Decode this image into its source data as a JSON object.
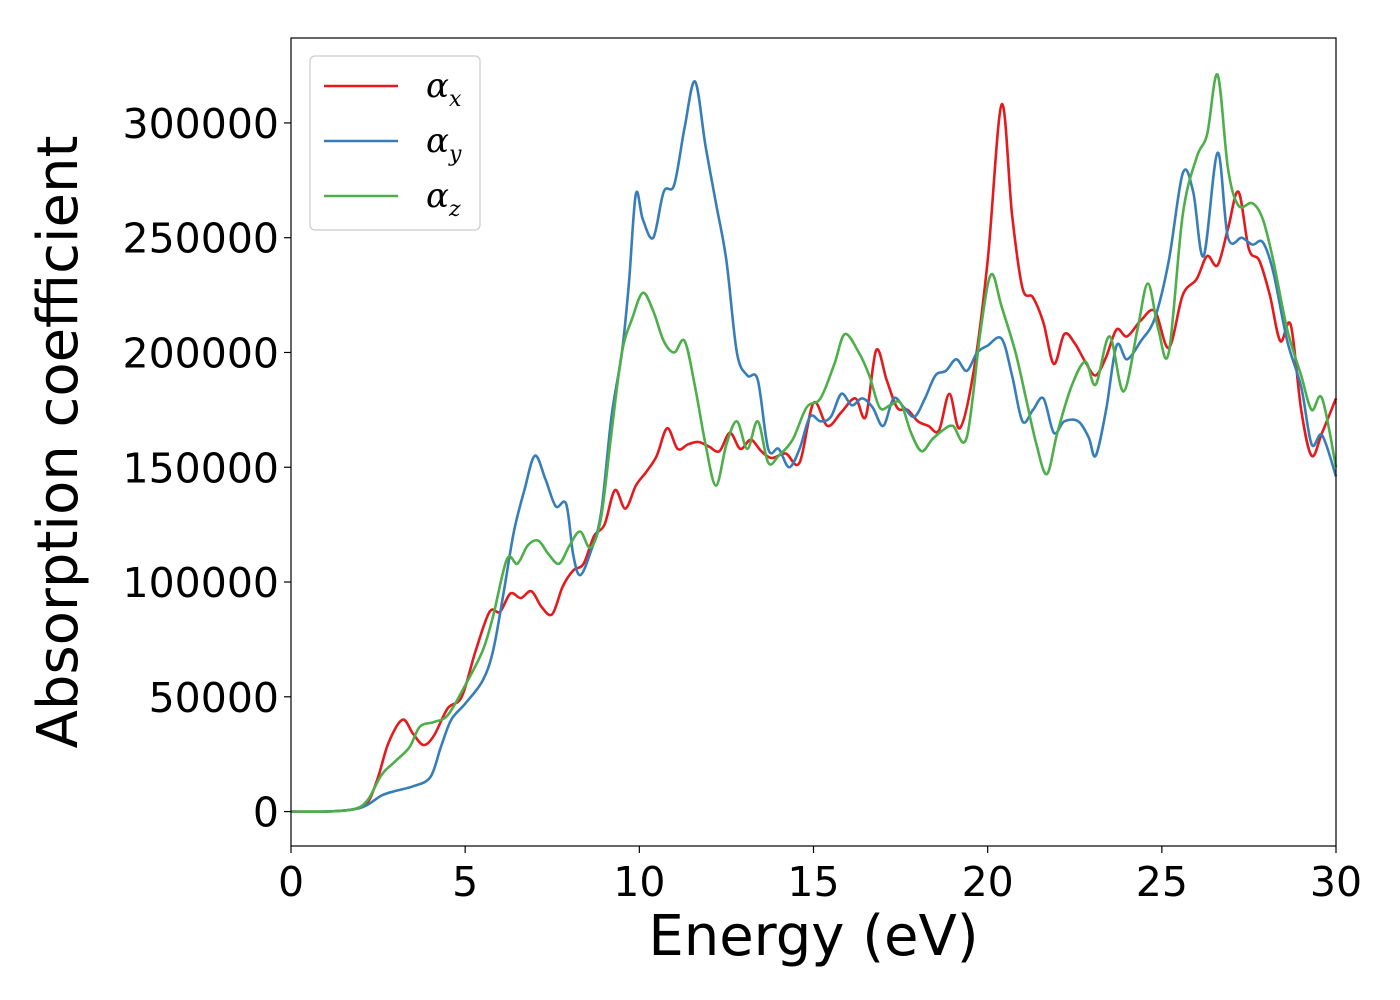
{
  "chart_data": {
    "type": "line",
    "title": "",
    "xlabel": "Energy (eV)",
    "ylabel": "Absorption coefficient",
    "xlim": [
      0,
      30
    ],
    "ylim": [
      -15000,
      337000
    ],
    "xticks": [
      0,
      5,
      10,
      15,
      20,
      25,
      30
    ],
    "yticks": [
      0,
      50000,
      100000,
      150000,
      200000,
      250000,
      300000
    ],
    "xtick_labels": [
      "0",
      "5",
      "10",
      "15",
      "20",
      "25",
      "30"
    ],
    "ytick_labels": [
      "0",
      "50000",
      "100000",
      "150000",
      "200000",
      "250000",
      "300000"
    ],
    "grid": false,
    "legend_position": "top-left",
    "series": [
      {
        "name": "α",
        "subscript": "x",
        "color": "#e41a1c",
        "points": [
          [
            0,
            0
          ],
          [
            1,
            0
          ],
          [
            1.8,
            1000
          ],
          [
            2.2,
            4000
          ],
          [
            2.5,
            15000
          ],
          [
            2.8,
            30000
          ],
          [
            3.2,
            40000
          ],
          [
            3.5,
            34000
          ],
          [
            3.8,
            29000
          ],
          [
            4.1,
            33000
          ],
          [
            4.5,
            45000
          ],
          [
            4.9,
            50000
          ],
          [
            5.3,
            70000
          ],
          [
            5.7,
            87000
          ],
          [
            6.0,
            87000
          ],
          [
            6.3,
            95000
          ],
          [
            6.6,
            93000
          ],
          [
            6.9,
            96000
          ],
          [
            7.2,
            89000
          ],
          [
            7.5,
            86000
          ],
          [
            7.8,
            98000
          ],
          [
            8.1,
            105000
          ],
          [
            8.4,
            108000
          ],
          [
            8.7,
            120000
          ],
          [
            9.0,
            125000
          ],
          [
            9.3,
            140000
          ],
          [
            9.6,
            132000
          ],
          [
            9.9,
            142000
          ],
          [
            10.2,
            148000
          ],
          [
            10.5,
            155000
          ],
          [
            10.8,
            167000
          ],
          [
            11.1,
            158000
          ],
          [
            11.4,
            160000
          ],
          [
            11.7,
            161000
          ],
          [
            12.0,
            159000
          ],
          [
            12.3,
            157000
          ],
          [
            12.6,
            165000
          ],
          [
            12.9,
            158000
          ],
          [
            13.2,
            162000
          ],
          [
            13.5,
            157000
          ],
          [
            13.8,
            154000
          ],
          [
            14.2,
            156000
          ],
          [
            14.6,
            152000
          ],
          [
            15.0,
            178000
          ],
          [
            15.4,
            168000
          ],
          [
            15.8,
            174000
          ],
          [
            16.2,
            180000
          ],
          [
            16.5,
            172000
          ],
          [
            16.8,
            201000
          ],
          [
            17.1,
            188000
          ],
          [
            17.4,
            176000
          ],
          [
            17.7,
            175000
          ],
          [
            18.0,
            170000
          ],
          [
            18.3,
            168000
          ],
          [
            18.6,
            166000
          ],
          [
            18.9,
            182000
          ],
          [
            19.2,
            167000
          ],
          [
            19.6,
            192000
          ],
          [
            20.0,
            240000
          ],
          [
            20.4,
            308000
          ],
          [
            20.7,
            260000
          ],
          [
            21.0,
            228000
          ],
          [
            21.3,
            224000
          ],
          [
            21.6,
            213000
          ],
          [
            21.9,
            195000
          ],
          [
            22.2,
            208000
          ],
          [
            22.5,
            204000
          ],
          [
            22.8,
            196000
          ],
          [
            23.1,
            190000
          ],
          [
            23.4,
            198000
          ],
          [
            23.7,
            210000
          ],
          [
            24.0,
            207000
          ],
          [
            24.4,
            214000
          ],
          [
            24.8,
            218000
          ],
          [
            25.2,
            202000
          ],
          [
            25.6,
            225000
          ],
          [
            26.0,
            232000
          ],
          [
            26.3,
            242000
          ],
          [
            26.6,
            238000
          ],
          [
            26.9,
            254000
          ],
          [
            27.2,
            270000
          ],
          [
            27.5,
            245000
          ],
          [
            27.8,
            240000
          ],
          [
            28.1,
            225000
          ],
          [
            28.4,
            205000
          ],
          [
            28.7,
            212000
          ],
          [
            29.0,
            175000
          ],
          [
            29.3,
            155000
          ],
          [
            29.6,
            165000
          ],
          [
            30.0,
            180000
          ]
        ]
      },
      {
        "name": "α",
        "subscript": "y",
        "color": "#377eb8",
        "points": [
          [
            0,
            0
          ],
          [
            1,
            0
          ],
          [
            1.8,
            1000
          ],
          [
            2.2,
            3000
          ],
          [
            2.6,
            7000
          ],
          [
            3.0,
            9000
          ],
          [
            3.5,
            11000
          ],
          [
            4.0,
            15000
          ],
          [
            4.3,
            28000
          ],
          [
            4.6,
            40000
          ],
          [
            5.0,
            47000
          ],
          [
            5.5,
            57000
          ],
          [
            5.8,
            70000
          ],
          [
            6.1,
            95000
          ],
          [
            6.4,
            122000
          ],
          [
            6.7,
            140000
          ],
          [
            7.0,
            155000
          ],
          [
            7.3,
            145000
          ],
          [
            7.6,
            133000
          ],
          [
            7.9,
            134000
          ],
          [
            8.1,
            112000
          ],
          [
            8.3,
            103000
          ],
          [
            8.6,
            113000
          ],
          [
            8.9,
            130000
          ],
          [
            9.2,
            172000
          ],
          [
            9.5,
            200000
          ],
          [
            9.7,
            230000
          ],
          [
            9.9,
            269000
          ],
          [
            10.1,
            258000
          ],
          [
            10.4,
            250000
          ],
          [
            10.7,
            270000
          ],
          [
            11.0,
            273000
          ],
          [
            11.3,
            298000
          ],
          [
            11.6,
            318000
          ],
          [
            11.9,
            290000
          ],
          [
            12.2,
            265000
          ],
          [
            12.5,
            240000
          ],
          [
            12.8,
            200000
          ],
          [
            13.1,
            190000
          ],
          [
            13.4,
            188000
          ],
          [
            13.7,
            158000
          ],
          [
            14.0,
            158000
          ],
          [
            14.3,
            150000
          ],
          [
            14.6,
            158000
          ],
          [
            14.9,
            172000
          ],
          [
            15.2,
            170000
          ],
          [
            15.5,
            172000
          ],
          [
            15.8,
            182000
          ],
          [
            16.1,
            177000
          ],
          [
            16.4,
            180000
          ],
          [
            16.7,
            176000
          ],
          [
            17.0,
            168000
          ],
          [
            17.3,
            180000
          ],
          [
            17.6,
            176000
          ],
          [
            17.9,
            172000
          ],
          [
            18.2,
            180000
          ],
          [
            18.5,
            190000
          ],
          [
            18.8,
            192000
          ],
          [
            19.1,
            197000
          ],
          [
            19.4,
            192000
          ],
          [
            19.7,
            200000
          ],
          [
            20.0,
            203000
          ],
          [
            20.4,
            206000
          ],
          [
            20.7,
            190000
          ],
          [
            21.0,
            170000
          ],
          [
            21.3,
            175000
          ],
          [
            21.6,
            180000
          ],
          [
            21.9,
            165000
          ],
          [
            22.2,
            170000
          ],
          [
            22.6,
            170000
          ],
          [
            22.9,
            163000
          ],
          [
            23.1,
            155000
          ],
          [
            23.4,
            175000
          ],
          [
            23.7,
            203000
          ],
          [
            24.0,
            197000
          ],
          [
            24.4,
            205000
          ],
          [
            24.8,
            215000
          ],
          [
            25.2,
            240000
          ],
          [
            25.6,
            278000
          ],
          [
            25.9,
            270000
          ],
          [
            26.2,
            242000
          ],
          [
            26.6,
            287000
          ],
          [
            26.9,
            250000
          ],
          [
            27.3,
            250000
          ],
          [
            27.6,
            247000
          ],
          [
            27.9,
            248000
          ],
          [
            28.2,
            235000
          ],
          [
            28.6,
            205000
          ],
          [
            29.0,
            185000
          ],
          [
            29.3,
            160000
          ],
          [
            29.6,
            164000
          ],
          [
            30.0,
            146000
          ]
        ]
      },
      {
        "name": "α",
        "subscript": "z",
        "color": "#4daf4a",
        "points": [
          [
            0,
            0
          ],
          [
            1,
            0
          ],
          [
            1.8,
            1000
          ],
          [
            2.2,
            5000
          ],
          [
            2.6,
            16000
          ],
          [
            3.0,
            22000
          ],
          [
            3.4,
            28000
          ],
          [
            3.7,
            37000
          ],
          [
            4.1,
            39000
          ],
          [
            4.5,
            42000
          ],
          [
            5.0,
            55000
          ],
          [
            5.5,
            70000
          ],
          [
            5.8,
            85000
          ],
          [
            6.2,
            110000
          ],
          [
            6.5,
            108000
          ],
          [
            6.8,
            116000
          ],
          [
            7.1,
            118000
          ],
          [
            7.4,
            112000
          ],
          [
            7.7,
            108000
          ],
          [
            8.0,
            116000
          ],
          [
            8.3,
            122000
          ],
          [
            8.6,
            115000
          ],
          [
            8.9,
            128000
          ],
          [
            9.2,
            165000
          ],
          [
            9.5,
            200000
          ],
          [
            9.8,
            215000
          ],
          [
            10.1,
            226000
          ],
          [
            10.4,
            218000
          ],
          [
            10.7,
            205000
          ],
          [
            11.0,
            200000
          ],
          [
            11.3,
            205000
          ],
          [
            11.6,
            185000
          ],
          [
            11.9,
            160000
          ],
          [
            12.2,
            142000
          ],
          [
            12.5,
            160000
          ],
          [
            12.8,
            170000
          ],
          [
            13.1,
            158000
          ],
          [
            13.4,
            170000
          ],
          [
            13.7,
            152000
          ],
          [
            14.0,
            155000
          ],
          [
            14.4,
            162000
          ],
          [
            14.8,
            176000
          ],
          [
            15.2,
            180000
          ],
          [
            15.6,
            195000
          ],
          [
            15.9,
            208000
          ],
          [
            16.3,
            200000
          ],
          [
            16.6,
            190000
          ],
          [
            16.9,
            176000
          ],
          [
            17.2,
            177000
          ],
          [
            17.5,
            178000
          ],
          [
            17.8,
            165000
          ],
          [
            18.1,
            157000
          ],
          [
            18.4,
            162000
          ],
          [
            18.7,
            166000
          ],
          [
            19.0,
            168000
          ],
          [
            19.4,
            163000
          ],
          [
            19.8,
            210000
          ],
          [
            20.1,
            234000
          ],
          [
            20.4,
            220000
          ],
          [
            20.8,
            200000
          ],
          [
            21.1,
            180000
          ],
          [
            21.4,
            160000
          ],
          [
            21.7,
            147000
          ],
          [
            22.0,
            165000
          ],
          [
            22.4,
            185000
          ],
          [
            22.8,
            196000
          ],
          [
            23.1,
            186000
          ],
          [
            23.5,
            207000
          ],
          [
            23.9,
            183000
          ],
          [
            24.3,
            210000
          ],
          [
            24.6,
            230000
          ],
          [
            24.9,
            210000
          ],
          [
            25.2,
            200000
          ],
          [
            25.6,
            260000
          ],
          [
            26.0,
            285000
          ],
          [
            26.3,
            295000
          ],
          [
            26.6,
            321000
          ],
          [
            26.9,
            280000
          ],
          [
            27.2,
            264000
          ],
          [
            27.6,
            265000
          ],
          [
            27.9,
            258000
          ],
          [
            28.2,
            240000
          ],
          [
            28.6,
            210000
          ],
          [
            29.0,
            190000
          ],
          [
            29.3,
            175000
          ],
          [
            29.6,
            180000
          ],
          [
            30.0,
            150000
          ]
        ]
      }
    ]
  }
}
